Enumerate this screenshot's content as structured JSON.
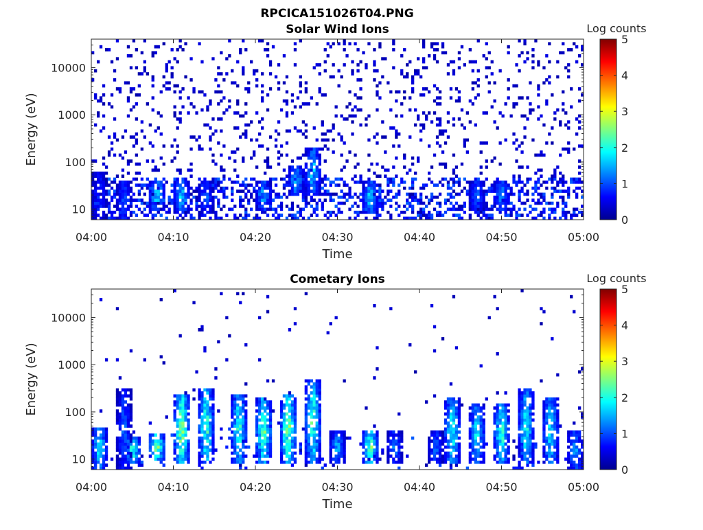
{
  "figure": {
    "title": "RPCICA151026T04.PNG"
  },
  "chart_data": [
    {
      "type": "heatmap",
      "title": "Solar Wind Ions",
      "xlabel": "Time",
      "ylabel": "Energy (eV)",
      "x_ticks": [
        "04:00",
        "04:10",
        "04:20",
        "04:30",
        "04:40",
        "04:50",
        "05:00"
      ],
      "x_range": [
        "04:00",
        "05:00"
      ],
      "y_scale": "log",
      "y_ticks": [
        10,
        100,
        1000,
        10000
      ],
      "y_tick_labels": [
        "10",
        "100",
        "1000",
        "10000"
      ],
      "y_range": [
        6,
        40000
      ],
      "colorbar": {
        "label": "Log counts",
        "ticks": [
          "0",
          "1",
          "2",
          "3",
          "4",
          "5"
        ],
        "range": [
          0,
          5
        ],
        "colormap": "jet"
      },
      "bursts": [
        {
          "time": "04:01",
          "energy_low": 6,
          "energy_high": 60,
          "peak_log_counts": 1.0
        },
        {
          "time": "04:04",
          "energy_low": 6,
          "energy_high": 40,
          "peak_log_counts": 1.2
        },
        {
          "time": "04:08",
          "energy_low": 10,
          "energy_high": 40,
          "peak_log_counts": 2.0
        },
        {
          "time": "04:11",
          "energy_low": 8,
          "energy_high": 40,
          "peak_log_counts": 1.8
        },
        {
          "time": "04:14",
          "energy_low": 8,
          "energy_high": 40,
          "peak_log_counts": 1.2
        },
        {
          "time": "04:21",
          "energy_low": 10,
          "energy_high": 40,
          "peak_log_counts": 1.6
        },
        {
          "time": "04:25",
          "energy_low": 20,
          "energy_high": 80,
          "peak_log_counts": 1.7
        },
        {
          "time": "04:27",
          "energy_low": 20,
          "energy_high": 200,
          "peak_log_counts": 1.8
        },
        {
          "time": "04:34",
          "energy_low": 8,
          "energy_high": 40,
          "peak_log_counts": 1.8
        },
        {
          "time": "04:47",
          "energy_low": 10,
          "energy_high": 40,
          "peak_log_counts": 1.3
        },
        {
          "time": "04:50",
          "energy_low": 10,
          "energy_high": 40,
          "peak_log_counts": 1.6
        }
      ]
    },
    {
      "type": "heatmap",
      "title": "Cometary Ions",
      "xlabel": "Time",
      "ylabel": "Energy (eV)",
      "x_ticks": [
        "04:00",
        "04:10",
        "04:20",
        "04:30",
        "04:40",
        "04:50",
        "05:00"
      ],
      "x_range": [
        "04:00",
        "05:00"
      ],
      "y_scale": "log",
      "y_ticks": [
        10,
        100,
        1000,
        10000
      ],
      "y_tick_labels": [
        "10",
        "100",
        "1000",
        "10000"
      ],
      "y_range": [
        6,
        40000
      ],
      "colorbar": {
        "label": "Log counts",
        "ticks": [
          "0",
          "1",
          "2",
          "3",
          "4",
          "5"
        ],
        "range": [
          0,
          5
        ],
        "colormap": "jet"
      },
      "bursts": [
        {
          "time": "04:01",
          "energy_low": 6,
          "energy_high": 50,
          "peak_log_counts": 2.0
        },
        {
          "time": "04:04",
          "energy_low": 6,
          "energy_high": 300,
          "peak_log_counts": 1.2
        },
        {
          "time": "04:05",
          "energy_low": 8,
          "energy_high": 30,
          "peak_log_counts": 2.3
        },
        {
          "time": "04:08",
          "energy_low": 10,
          "energy_high": 35,
          "peak_log_counts": 2.8
        },
        {
          "time": "04:11",
          "energy_low": 8,
          "energy_high": 250,
          "peak_log_counts": 2.8
        },
        {
          "time": "04:14",
          "energy_low": 8,
          "energy_high": 300,
          "peak_log_counts": 2.4
        },
        {
          "time": "04:18",
          "energy_low": 8,
          "energy_high": 250,
          "peak_log_counts": 2.3
        },
        {
          "time": "04:21",
          "energy_low": 8,
          "energy_high": 200,
          "peak_log_counts": 2.6
        },
        {
          "time": "04:24",
          "energy_low": 8,
          "energy_high": 250,
          "peak_log_counts": 2.7
        },
        {
          "time": "04:27",
          "energy_low": 8,
          "energy_high": 500,
          "peak_log_counts": 2.4
        },
        {
          "time": "04:30",
          "energy_low": 8,
          "energy_high": 40,
          "peak_log_counts": 1.6
        },
        {
          "time": "04:34",
          "energy_low": 8,
          "energy_high": 40,
          "peak_log_counts": 2.6
        },
        {
          "time": "04:37",
          "energy_low": 8,
          "energy_high": 40,
          "peak_log_counts": 1.3
        },
        {
          "time": "04:42",
          "energy_low": 8,
          "energy_high": 40,
          "peak_log_counts": 1.2
        },
        {
          "time": "04:44",
          "energy_low": 8,
          "energy_high": 200,
          "peak_log_counts": 2.2
        },
        {
          "time": "04:47",
          "energy_low": 8,
          "energy_high": 150,
          "peak_log_counts": 2.0
        },
        {
          "time": "04:50",
          "energy_low": 8,
          "energy_high": 150,
          "peak_log_counts": 2.3
        },
        {
          "time": "04:53",
          "energy_low": 8,
          "energy_high": 300,
          "peak_log_counts": 2.1
        },
        {
          "time": "04:56",
          "energy_low": 8,
          "energy_high": 200,
          "peak_log_counts": 2.0
        },
        {
          "time": "04:59",
          "energy_low": 6,
          "energy_high": 40,
          "peak_log_counts": 1.6
        }
      ]
    }
  ]
}
